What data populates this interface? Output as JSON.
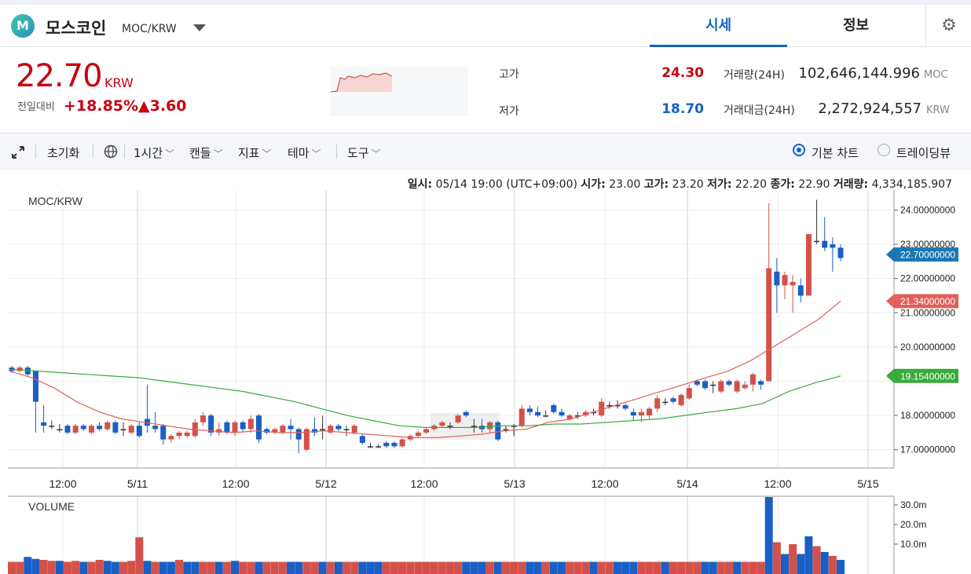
{
  "header": {
    "logo_letter": "M",
    "coin_name": "모스코인",
    "pair": "MOC/KRW",
    "tabs": [
      {
        "label": "시세",
        "active": true
      },
      {
        "label": "정보",
        "active": false
      }
    ],
    "settings_icon": "gear-icon"
  },
  "price": {
    "value": "22.70",
    "unit": "KRW",
    "change_label": "전일대비",
    "change_pct": "+18.85%",
    "change_abs": "▲3.60",
    "color_up": "#c8000f",
    "color_down": "#1261c4"
  },
  "stats": {
    "high_label": "고가",
    "high_value": "24.30",
    "low_label": "저가",
    "low_value": "18.70",
    "volume_label": "거래량(24H)",
    "volume_value": "102,646,144.996",
    "volume_unit": "MOC",
    "amount_label": "거래대금(24H)",
    "amount_value": "2,272,924,557",
    "amount_unit": "KRW"
  },
  "toolbar": {
    "expand_icon": "expand-icon",
    "reset_label": "초기화",
    "globe_icon": "globe-icon",
    "interval_label": "1시간",
    "candle_label": "캔들",
    "indicator_label": "지표",
    "theme_label": "테마",
    "tools_label": "도구",
    "view_basic_label": "기본 차트",
    "view_trading_label": "트레이딩뷰",
    "view_selected": "기본 차트"
  },
  "info_line": {
    "time_label": "일시:",
    "time_value": "05/14 19:00 (UTC+09:00)",
    "open_label": "시가:",
    "open_value": "23.00",
    "high_label": "고가:",
    "high_value": "23.20",
    "low_label": "저가:",
    "low_value": "22.20",
    "close_label": "종가:",
    "close_value": "22.90",
    "vol_label": "거래량:",
    "vol_value": "4,334,185.907"
  },
  "chart_data": [
    {
      "type": "candlestick",
      "title": "MOC/KRW",
      "ylim": [
        16.5,
        24.5
      ],
      "y_ticks": [
        "24.00000000",
        "23.00000000",
        "22.00000000",
        "21.00000000",
        "20.00000000",
        "18.00000000",
        "17.00000000"
      ],
      "x_ticks": [
        "12:00",
        "5/11",
        "12:00",
        "5/12",
        "12:00",
        "5/13",
        "12:00",
        "5/14",
        "12:00",
        "5/15"
      ],
      "price_tags": [
        {
          "label": "22.70000000",
          "value": 22.7,
          "color": "#1a78b4"
        },
        {
          "label": "21.34000000",
          "value": 21.34,
          "color": "#e0605a"
        },
        {
          "label": "19.15400000",
          "value": 19.154,
          "color": "#3aaa3a"
        }
      ],
      "candles": [
        {
          "o": 19.4,
          "c": 19.3,
          "h": 19.45,
          "l": 19.25
        },
        {
          "o": 19.3,
          "c": 19.4,
          "h": 19.45,
          "l": 19.25
        },
        {
          "o": 19.4,
          "c": 19.2,
          "h": 19.45,
          "l": 19.15
        },
        {
          "o": 19.3,
          "c": 18.4,
          "h": 19.3,
          "l": 17.5
        },
        {
          "o": 17.8,
          "c": 17.7,
          "h": 18.3,
          "l": 17.5
        },
        {
          "o": 17.7,
          "c": 17.7,
          "h": 17.85,
          "l": 17.6
        },
        {
          "o": 17.6,
          "c": 17.6,
          "h": 17.75,
          "l": 17.5
        },
        {
          "o": 17.7,
          "c": 17.5,
          "h": 17.75,
          "l": 17.45
        },
        {
          "o": 17.5,
          "c": 17.7,
          "h": 17.75,
          "l": 17.45
        },
        {
          "o": 17.7,
          "c": 17.6,
          "h": 17.75,
          "l": 17.55
        },
        {
          "o": 17.5,
          "c": 17.7,
          "h": 17.75,
          "l": 17.45
        },
        {
          "o": 17.7,
          "c": 17.6,
          "h": 17.8,
          "l": 17.55
        },
        {
          "o": 17.6,
          "c": 17.8,
          "h": 17.85,
          "l": 17.55
        },
        {
          "o": 17.8,
          "c": 17.5,
          "h": 17.85,
          "l": 17.45
        },
        {
          "o": 17.6,
          "c": 17.6,
          "h": 17.8,
          "l": 17.4
        },
        {
          "o": 17.5,
          "c": 17.7,
          "h": 17.75,
          "l": 17.45
        },
        {
          "o": 17.7,
          "c": 17.4,
          "h": 17.8,
          "l": 17.35
        },
        {
          "o": 17.9,
          "c": 17.7,
          "h": 18.9,
          "l": 17.5
        },
        {
          "o": 17.7,
          "c": 17.6,
          "h": 18.1,
          "l": 17.5
        },
        {
          "o": 17.7,
          "c": 17.3,
          "h": 17.75,
          "l": 17.15
        },
        {
          "o": 17.3,
          "c": 17.4,
          "h": 17.45,
          "l": 17.2
        },
        {
          "o": 17.4,
          "c": 17.5,
          "h": 17.55,
          "l": 17.3
        },
        {
          "o": 17.4,
          "c": 17.5,
          "h": 17.55,
          "l": 17.35
        },
        {
          "o": 17.4,
          "c": 17.8,
          "h": 17.9,
          "l": 17.35
        },
        {
          "o": 17.8,
          "c": 18.0,
          "h": 18.1,
          "l": 17.7
        },
        {
          "o": 18.0,
          "c": 17.5,
          "h": 18.05,
          "l": 17.4
        },
        {
          "o": 17.5,
          "c": 17.6,
          "h": 17.8,
          "l": 17.4
        },
        {
          "o": 17.8,
          "c": 17.5,
          "h": 17.85,
          "l": 17.45
        },
        {
          "o": 17.5,
          "c": 17.8,
          "h": 17.85,
          "l": 17.4
        },
        {
          "o": 17.8,
          "c": 17.6,
          "h": 17.85,
          "l": 17.5
        },
        {
          "o": 17.6,
          "c": 17.9,
          "h": 18.0,
          "l": 17.5
        },
        {
          "o": 18.0,
          "c": 17.3,
          "h": 18.05,
          "l": 17.2
        },
        {
          "o": 17.6,
          "c": 17.5,
          "h": 17.65,
          "l": 17.45
        },
        {
          "o": 17.5,
          "c": 17.6,
          "h": 17.65,
          "l": 17.45
        },
        {
          "o": 17.5,
          "c": 17.7,
          "h": 17.75,
          "l": 17.45
        },
        {
          "o": 17.7,
          "c": 17.6,
          "h": 17.9,
          "l": 17.3
        },
        {
          "o": 17.6,
          "c": 17.3,
          "h": 17.65,
          "l": 16.9
        },
        {
          "o": 17.0,
          "c": 17.6,
          "h": 17.65,
          "l": 16.95
        },
        {
          "o": 17.6,
          "c": 17.5,
          "h": 17.95,
          "l": 17.4
        },
        {
          "o": 17.6,
          "c": 17.6,
          "h": 18.0,
          "l": 17.3
        },
        {
          "o": 17.5,
          "c": 17.7,
          "h": 17.75,
          "l": 17.45
        },
        {
          "o": 17.7,
          "c": 17.6,
          "h": 17.75,
          "l": 17.55
        },
        {
          "o": 17.6,
          "c": 17.6,
          "h": 17.7,
          "l": 17.4
        },
        {
          "o": 17.5,
          "c": 17.7,
          "h": 17.75,
          "l": 17.45
        },
        {
          "o": 17.4,
          "c": 17.2,
          "h": 17.45,
          "l": 17.15
        },
        {
          "o": 17.1,
          "c": 17.1,
          "h": 17.2,
          "l": 17.05
        },
        {
          "o": 17.1,
          "c": 17.1,
          "h": 17.15,
          "l": 17.05
        },
        {
          "o": 17.2,
          "c": 17.1,
          "h": 17.25,
          "l": 17.05
        },
        {
          "o": 17.2,
          "c": 17.1,
          "h": 17.25,
          "l": 17.05
        },
        {
          "o": 17.1,
          "c": 17.3,
          "h": 17.35,
          "l": 17.05
        },
        {
          "o": 17.3,
          "c": 17.4,
          "h": 17.45,
          "l": 17.25
        },
        {
          "o": 17.4,
          "c": 17.5,
          "h": 17.55,
          "l": 17.35
        },
        {
          "o": 17.5,
          "c": 17.6,
          "h": 17.65,
          "l": 17.45
        },
        {
          "o": 17.6,
          "c": 17.7,
          "h": 17.75,
          "l": 17.55
        },
        {
          "o": 17.7,
          "c": 17.8,
          "h": 17.85,
          "l": 17.65
        },
        {
          "o": 17.7,
          "c": 17.7,
          "h": 17.8,
          "l": 17.6
        },
        {
          "o": 17.8,
          "c": 18.0,
          "h": 18.05,
          "l": 17.75
        },
        {
          "o": 18.1,
          "c": 18.0,
          "h": 18.15,
          "l": 17.95
        },
        {
          "o": 17.7,
          "c": 17.7,
          "h": 17.9,
          "l": 17.5
        },
        {
          "o": 17.7,
          "c": 17.6,
          "h": 17.9,
          "l": 17.5
        },
        {
          "o": 17.6,
          "c": 17.8,
          "h": 17.85,
          "l": 17.5
        },
        {
          "o": 17.8,
          "c": 17.3,
          "h": 17.85,
          "l": 17.25
        },
        {
          "o": 17.6,
          "c": 17.6,
          "h": 17.7,
          "l": 17.5
        },
        {
          "o": 17.7,
          "c": 17.7,
          "h": 17.75,
          "l": 17.4
        },
        {
          "o": 17.7,
          "c": 18.2,
          "h": 18.3,
          "l": 17.65
        },
        {
          "o": 18.2,
          "c": 18.1,
          "h": 18.3,
          "l": 18.0
        },
        {
          "o": 18.1,
          "c": 18.0,
          "h": 18.25,
          "l": 17.95
        },
        {
          "o": 18.0,
          "c": 18.0,
          "h": 18.15,
          "l": 17.95
        },
        {
          "o": 18.3,
          "c": 18.1,
          "h": 18.35,
          "l": 18.05
        },
        {
          "o": 18.1,
          "c": 18.0,
          "h": 18.2,
          "l": 17.95
        },
        {
          "o": 17.9,
          "c": 18.0,
          "h": 18.05,
          "l": 17.85
        },
        {
          "o": 18.0,
          "c": 18.0,
          "h": 18.1,
          "l": 17.9
        },
        {
          "o": 18.0,
          "c": 18.1,
          "h": 18.15,
          "l": 17.95
        },
        {
          "o": 18.1,
          "c": 18.1,
          "h": 18.2,
          "l": 18.0
        },
        {
          "o": 18.0,
          "c": 18.4,
          "h": 18.5,
          "l": 17.95
        },
        {
          "o": 18.3,
          "c": 18.3,
          "h": 18.4,
          "l": 18.2
        },
        {
          "o": 18.3,
          "c": 18.3,
          "h": 18.45,
          "l": 18.2
        },
        {
          "o": 18.3,
          "c": 18.2,
          "h": 18.35,
          "l": 18.15
        },
        {
          "o": 18.1,
          "c": 18.0,
          "h": 18.2,
          "l": 17.85
        },
        {
          "o": 18.0,
          "c": 18.1,
          "h": 18.2,
          "l": 17.8
        },
        {
          "o": 18.0,
          "c": 18.2,
          "h": 18.25,
          "l": 17.9
        },
        {
          "o": 18.2,
          "c": 18.5,
          "h": 18.6,
          "l": 18.1
        },
        {
          "o": 18.4,
          "c": 18.4,
          "h": 18.5,
          "l": 18.3
        },
        {
          "o": 18.5,
          "c": 18.4,
          "h": 18.55,
          "l": 18.35
        },
        {
          "o": 18.3,
          "c": 18.6,
          "h": 18.65,
          "l": 18.25
        },
        {
          "o": 18.5,
          "c": 18.8,
          "h": 18.9,
          "l": 18.45
        },
        {
          "o": 19.0,
          "c": 18.9,
          "h": 19.05,
          "l": 18.85
        },
        {
          "o": 19.0,
          "c": 18.8,
          "h": 19.05,
          "l": 18.75
        },
        {
          "o": 18.9,
          "c": 18.9,
          "h": 19.0,
          "l": 18.65
        },
        {
          "o": 18.7,
          "c": 19.0,
          "h": 19.05,
          "l": 18.65
        },
        {
          "o": 19.0,
          "c": 18.9,
          "h": 19.05,
          "l": 18.85
        },
        {
          "o": 18.7,
          "c": 19.0,
          "h": 19.05,
          "l": 18.65
        },
        {
          "o": 18.8,
          "c": 18.9,
          "h": 19.0,
          "l": 18.75
        },
        {
          "o": 18.9,
          "c": 19.2,
          "h": 19.25,
          "l": 18.7
        },
        {
          "o": 19.0,
          "c": 18.9,
          "h": 19.05,
          "l": 18.75
        },
        {
          "o": 19.0,
          "c": 22.3,
          "h": 24.2,
          "l": 19.0
        },
        {
          "o": 22.2,
          "c": 21.8,
          "h": 22.6,
          "l": 21.0
        },
        {
          "o": 21.8,
          "c": 22.1,
          "h": 22.2,
          "l": 21.4
        },
        {
          "o": 21.8,
          "c": 21.9,
          "h": 22.1,
          "l": 21.0
        },
        {
          "o": 21.8,
          "c": 21.5,
          "h": 22.0,
          "l": 21.3
        },
        {
          "o": 21.5,
          "c": 23.3,
          "h": 23.3,
          "l": 21.5
        },
        {
          "o": 23.1,
          "c": 23.1,
          "h": 24.3,
          "l": 23.0
        },
        {
          "o": 23.1,
          "c": 22.9,
          "h": 23.8,
          "l": 22.8
        },
        {
          "o": 23.0,
          "c": 22.9,
          "h": 23.2,
          "l": 22.2
        },
        {
          "o": 22.9,
          "c": 22.6,
          "h": 23.0,
          "l": 22.5
        }
      ],
      "ma_short": [
        19.3,
        19.1,
        18.8,
        18.4,
        18.1,
        17.9,
        17.8,
        17.7,
        17.6,
        17.55,
        17.5,
        17.55,
        17.5,
        17.5,
        17.55,
        17.5,
        17.45,
        17.4,
        17.35,
        17.35,
        17.4,
        17.45,
        17.55,
        17.6,
        17.8,
        17.9,
        18.1,
        18.3,
        18.5,
        18.7,
        18.9,
        19.1,
        19.3,
        19.6,
        20.0,
        20.4,
        20.8,
        21.34
      ],
      "ma_long": [
        19.35,
        19.3,
        19.25,
        19.2,
        19.15,
        19.1,
        19.0,
        18.9,
        18.8,
        18.7,
        18.55,
        18.4,
        18.2,
        18.0,
        17.85,
        17.7,
        17.65,
        17.65,
        17.65,
        17.7,
        17.7,
        17.75,
        17.75,
        17.8,
        17.85,
        17.9,
        18.0,
        18.1,
        18.2,
        18.35,
        18.7,
        18.95,
        19.154
      ]
    },
    {
      "type": "bar",
      "title": "VOLUME",
      "y_ticks": [
        "30.0m",
        "20.0m",
        "10.0m"
      ],
      "ylim": [
        0,
        34
      ],
      "values": [
        1.0,
        1.0,
        3.5,
        2.5,
        2.0,
        1.5,
        1.5,
        1.0,
        1.5,
        1.0,
        1.0,
        2.0,
        1.5,
        1.0,
        1.0,
        1.5,
        13.5,
        1.5,
        1.0,
        1.0,
        1.0,
        2.0,
        1.0,
        1.0,
        1.0,
        1.0,
        1.0,
        1.0,
        1.5,
        1.0,
        1.0,
        1.0,
        1.0,
        1.0,
        1.0,
        1.0,
        1.0,
        1.0,
        1.0,
        1.0,
        1.0,
        1.0,
        1.0,
        1.0,
        1.0,
        1.0,
        1.0,
        1.0,
        1.0,
        1.0,
        1.0,
        1.0,
        1.0,
        1.0,
        1.0,
        1.0,
        1.0,
        1.0,
        1.0,
        1.0,
        1.0,
        1.0,
        1.0,
        1.0,
        1.0,
        1.0,
        1.0,
        1.0,
        1.0,
        1.0,
        1.0,
        1.0,
        1.0,
        1.0,
        1.0,
        1.0,
        1.0,
        1.0,
        1.0,
        1.0,
        1.0,
        1.0,
        1.0,
        1.0,
        1.0,
        1.0,
        1.0,
        1.0,
        1.0,
        1.0,
        1.0,
        1.0,
        1.0,
        1.0,
        1.0,
        34.0,
        11.0,
        5.0,
        10.0,
        5.0,
        14.0,
        9.0,
        6.0,
        4.0,
        2.0
      ],
      "colors": [
        "up",
        "up",
        "down",
        "down",
        "up",
        "up",
        "down",
        "up",
        "up",
        "down",
        "up",
        "up",
        "down",
        "down",
        "up",
        "up",
        "up",
        "down",
        "up",
        "down",
        "down",
        "up",
        "down",
        "down",
        "up",
        "up",
        "down",
        "up",
        "down",
        "up",
        "up",
        "down",
        "up",
        "up",
        "up",
        "down",
        "down",
        "up",
        "up",
        "down",
        "up",
        "down",
        "up",
        "up",
        "down",
        "down",
        "down",
        "up",
        "up",
        "up",
        "up",
        "up",
        "up",
        "up",
        "up",
        "up",
        "up",
        "down",
        "down",
        "down",
        "up",
        "down",
        "up",
        "up",
        "up",
        "down",
        "down",
        "up",
        "down",
        "down",
        "up",
        "up",
        "up",
        "down",
        "up",
        "up",
        "down",
        "down",
        "down",
        "up",
        "up",
        "up",
        "down",
        "up",
        "up",
        "up",
        "up",
        "down",
        "down",
        "up",
        "up",
        "down",
        "up",
        "up",
        "up",
        "down",
        "up",
        "down",
        "up",
        "down",
        "down",
        "up",
        "down",
        "up",
        "down",
        "down",
        "down",
        "down"
      ]
    }
  ]
}
